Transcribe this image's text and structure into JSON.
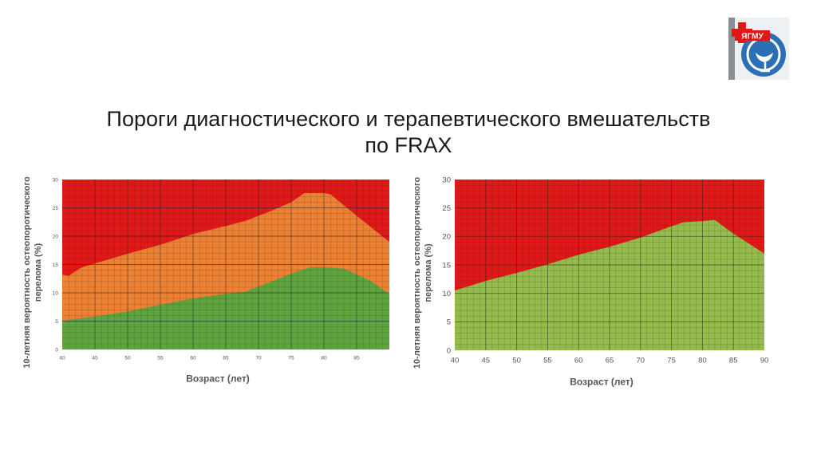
{
  "slide": {
    "title_line1": "Пороги диагностического и терапевтического вмешательств",
    "title_line2": "по FRAX",
    "logo_text": "ЯГМУ"
  },
  "colors": {
    "red": "#e01818",
    "orange": "#ec8134",
    "green_dark": "#5ea33e",
    "green_light": "#94bb4c",
    "grid": "#222222"
  },
  "chart_data": [
    {
      "type": "area",
      "xlabel": "Возраст (лет)",
      "ylabel": "10-летняя вероятность остеопоротического перелома (%)",
      "xlim": [
        40,
        90
      ],
      "ylim": [
        0,
        30
      ],
      "x_ticks": [
        40,
        45,
        50,
        55,
        60,
        65,
        70,
        75,
        80,
        85
      ],
      "y_ticks": [
        0,
        5,
        10,
        15,
        20,
        25,
        30
      ],
      "grid": true,
      "bands": [
        {
          "color": "green_dark",
          "description": "lower threshold"
        },
        {
          "color": "orange",
          "description": "between thresholds"
        },
        {
          "color": "red",
          "description": "above upper threshold"
        }
      ],
      "lower_threshold": {
        "x": [
          40,
          45,
          50,
          55,
          60,
          65,
          68,
          72,
          76,
          78,
          80,
          83,
          87,
          90
        ],
        "y": [
          5.1,
          5.8,
          6.7,
          7.9,
          9.0,
          9.8,
          10.2,
          12.0,
          13.8,
          14.5,
          14.5,
          14.3,
          12.2,
          9.8
        ]
      },
      "upper_threshold": {
        "x": [
          40,
          41,
          42,
          43,
          45,
          50,
          55,
          60,
          65,
          68,
          72,
          75,
          77,
          80,
          81,
          85,
          90
        ],
        "y": [
          13.2,
          13.0,
          13.8,
          14.5,
          15.2,
          16.9,
          18.5,
          20.4,
          21.8,
          22.7,
          24.5,
          26.0,
          27.6,
          27.6,
          27.4,
          23.6,
          19.0
        ]
      }
    },
    {
      "type": "area",
      "xlabel": "Возраст (лет)",
      "ylabel": "10-летняя вероятность остеопоротического перелома (%)",
      "xlim": [
        40,
        90
      ],
      "ylim": [
        0,
        30
      ],
      "x_ticks": [
        40,
        45,
        50,
        55,
        60,
        65,
        70,
        75,
        80,
        85,
        90
      ],
      "y_ticks": [
        0,
        5,
        10,
        15,
        20,
        25,
        30
      ],
      "grid": true,
      "bands": [
        {
          "color": "green_light",
          "description": "below threshold"
        },
        {
          "color": "red",
          "description": "above threshold"
        }
      ],
      "threshold": {
        "x": [
          40,
          45,
          50,
          55,
          60,
          65,
          70,
          75,
          77,
          80,
          82,
          85,
          90
        ],
        "y": [
          10.5,
          12.2,
          13.6,
          15.1,
          16.8,
          18.2,
          19.8,
          21.8,
          22.5,
          22.7,
          22.9,
          20.5,
          17.0
        ]
      }
    }
  ]
}
